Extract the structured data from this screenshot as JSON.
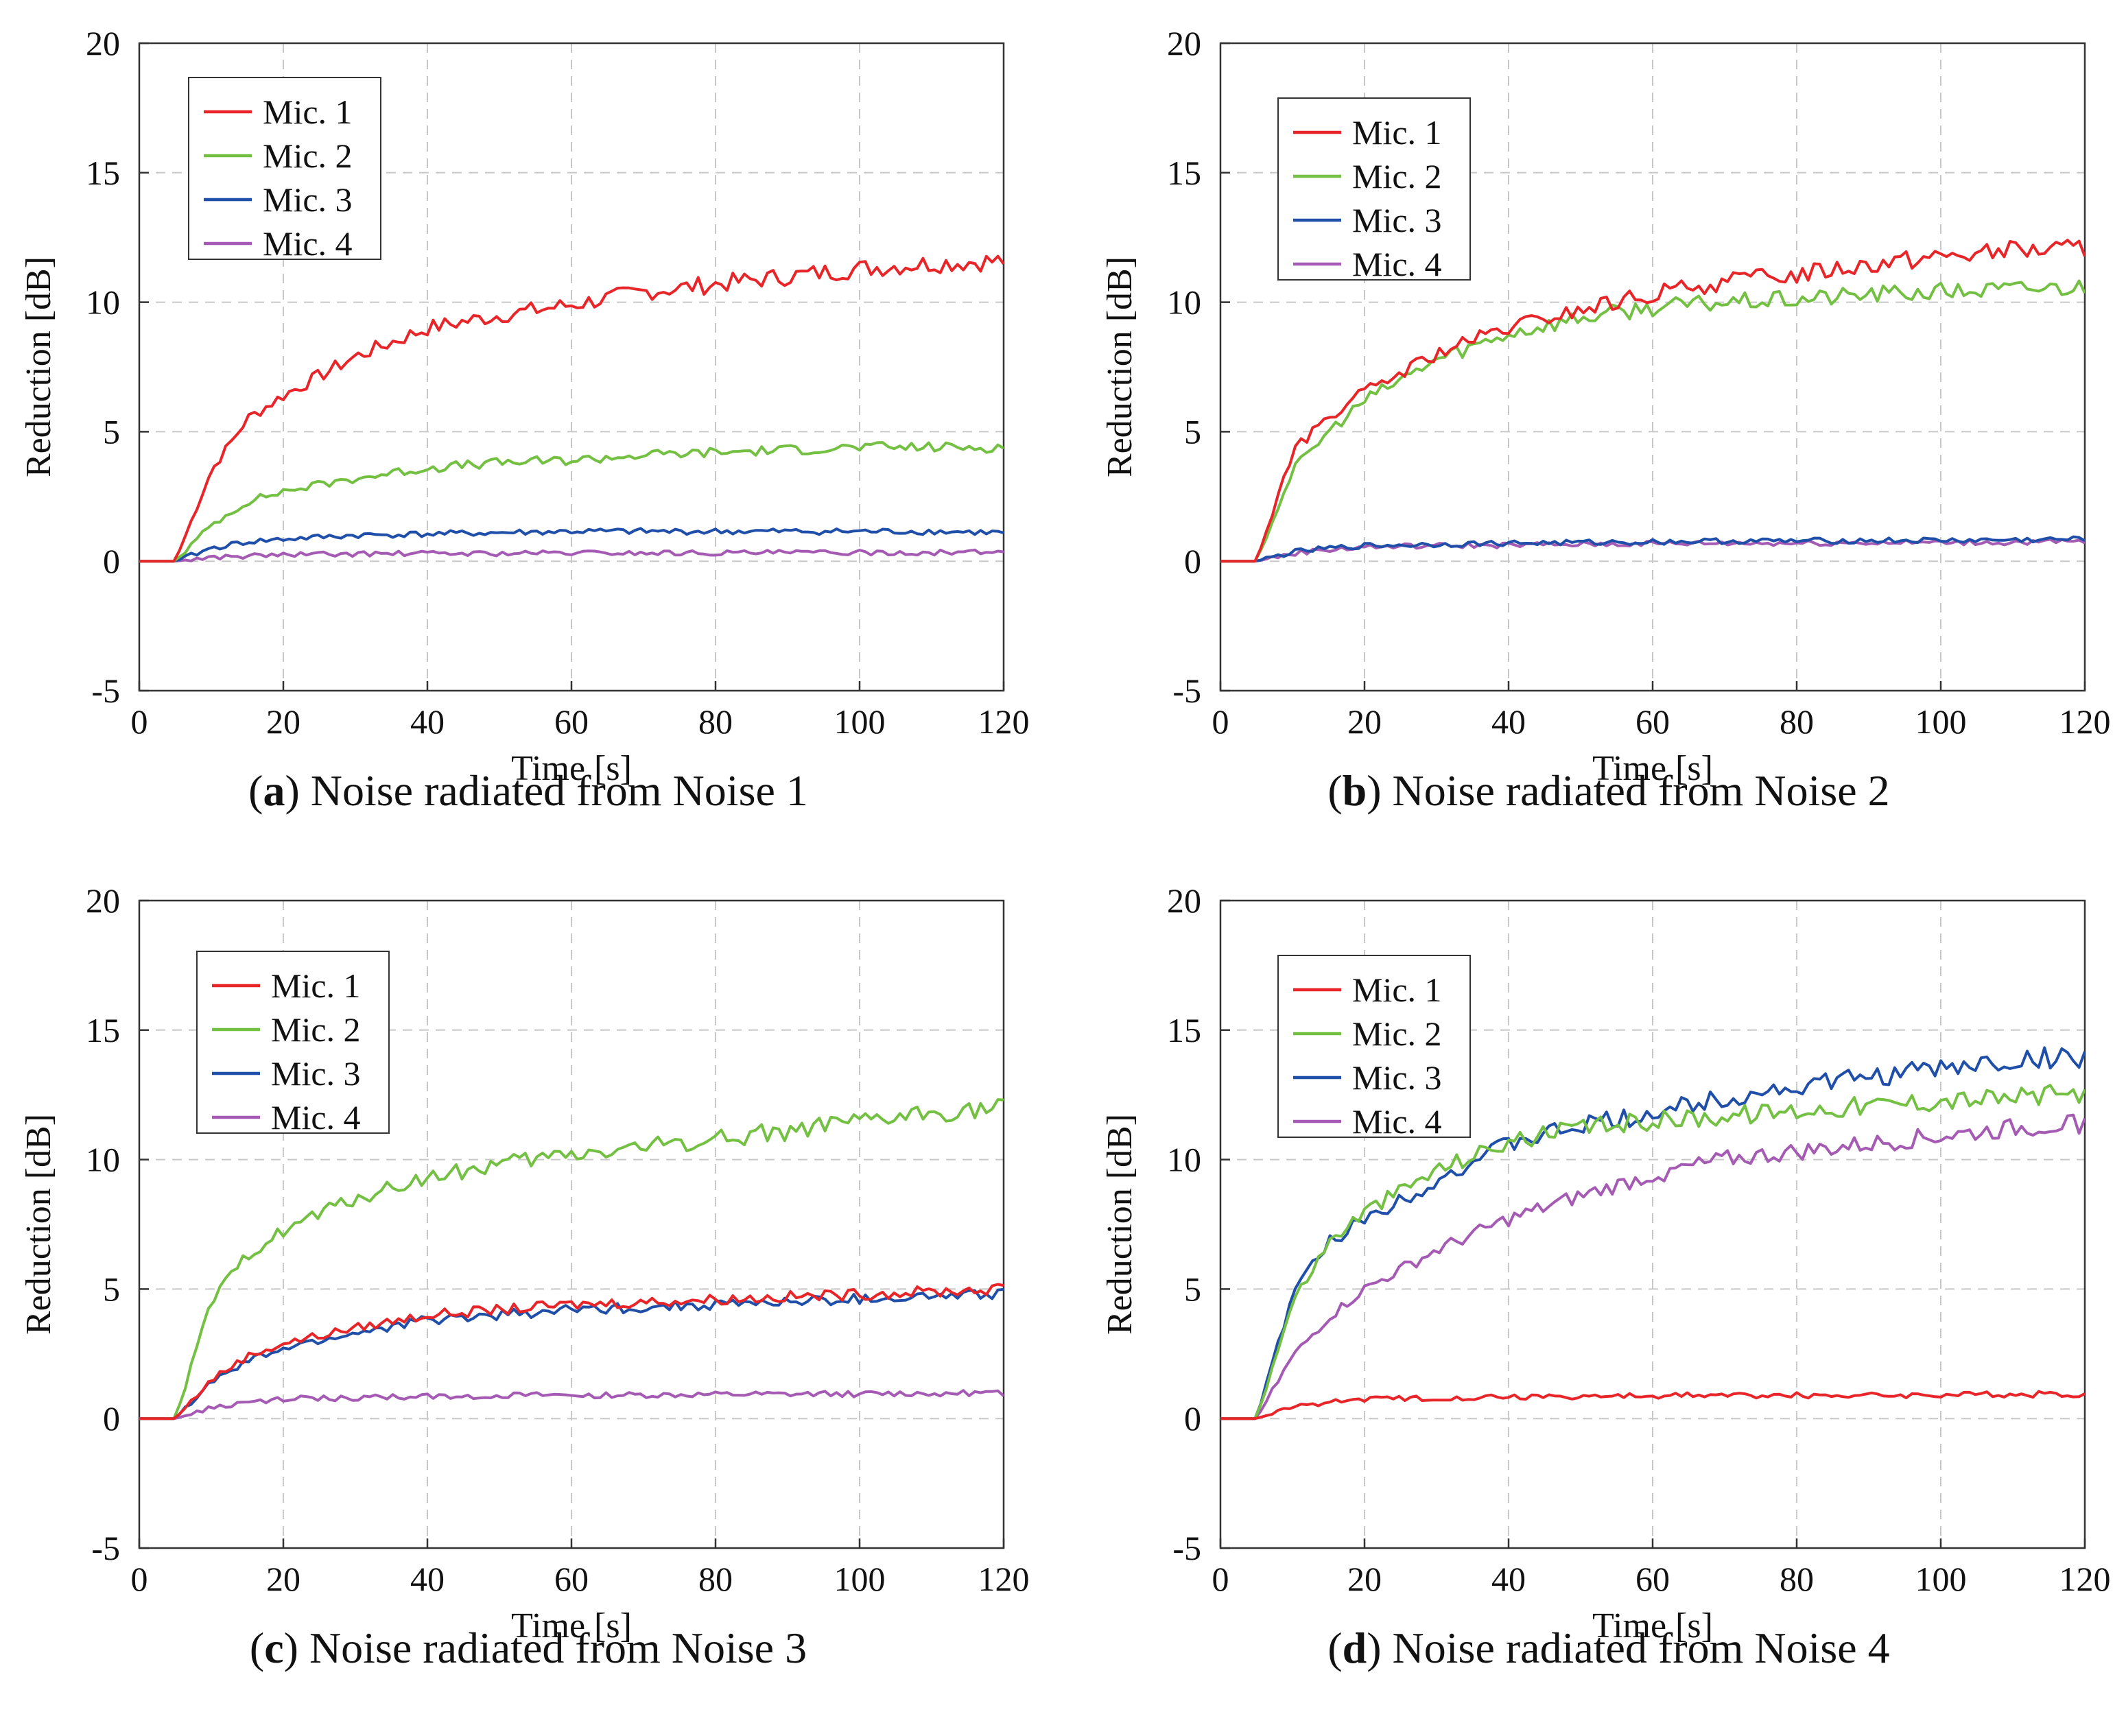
{
  "colors": {
    "mic1": "#e8262a",
    "mic2": "#73c043",
    "mic3": "#1f4fa8",
    "mic4": "#a55bb4",
    "grid": "#c8c8c8",
    "axis": "#333333"
  },
  "chart_data": [
    {
      "id": "a",
      "type": "line",
      "caption_letter": "a",
      "caption_text": "Noise radiated from Noise 1",
      "xlabel": "Time [s]",
      "ylabel": "Reduction [dB]",
      "xlim": [
        0,
        120
      ],
      "ylim": [
        -5,
        20
      ],
      "xticks": [
        0,
        20,
        40,
        60,
        80,
        100,
        120
      ],
      "yticks": [
        -5,
        0,
        5,
        10,
        15,
        20
      ],
      "grid": true,
      "legend_position": "top-left",
      "x": [
        0,
        5,
        10,
        15,
        20,
        30,
        40,
        50,
        60,
        70,
        80,
        90,
        100,
        110,
        120
      ],
      "series": [
        {
          "name": "Mic. 1",
          "color_key": "mic1",
          "values": [
            0,
            0,
            3.5,
            5.5,
            6.4,
            7.9,
            9.0,
            9.5,
            9.9,
            10.4,
            10.7,
            11.0,
            11.3,
            11.5,
            11.6
          ]
        },
        {
          "name": "Mic. 2",
          "color_key": "mic2",
          "values": [
            0,
            0,
            1.4,
            2.3,
            2.7,
            3.2,
            3.6,
            3.8,
            3.9,
            4.1,
            4.2,
            4.3,
            4.4,
            4.4,
            4.4
          ]
        },
        {
          "name": "Mic. 3",
          "color_key": "mic3",
          "values": [
            0,
            0,
            0.5,
            0.75,
            0.85,
            1.0,
            1.05,
            1.1,
            1.15,
            1.15,
            1.15,
            1.15,
            1.15,
            1.15,
            1.1
          ]
        },
        {
          "name": "Mic. 4",
          "color_key": "mic4",
          "values": [
            0,
            0,
            0.15,
            0.2,
            0.25,
            0.28,
            0.3,
            0.3,
            0.32,
            0.32,
            0.32,
            0.33,
            0.33,
            0.33,
            0.35
          ]
        }
      ]
    },
    {
      "id": "b",
      "type": "line",
      "caption_letter": "b",
      "caption_text": "Noise radiated from Noise 2",
      "xlabel": "Time [s]",
      "ylabel": "Reduction [dB]",
      "xlim": [
        0,
        120
      ],
      "ylim": [
        -5,
        20
      ],
      "xticks": [
        0,
        20,
        40,
        60,
        80,
        100,
        120
      ],
      "yticks": [
        -5,
        0,
        5,
        10,
        15,
        20
      ],
      "grid": true,
      "legend_position": "top-left",
      "x": [
        0,
        5,
        10,
        15,
        20,
        30,
        40,
        50,
        60,
        70,
        80,
        90,
        100,
        110,
        120
      ],
      "series": [
        {
          "name": "Mic. 1",
          "color_key": "mic1",
          "values": [
            0,
            0,
            4.2,
            5.6,
            6.5,
            8.0,
            9.0,
            9.7,
            10.3,
            10.8,
            11.1,
            11.5,
            11.8,
            12.0,
            12.1
          ]
        },
        {
          "name": "Mic. 2",
          "color_key": "mic2",
          "values": [
            0,
            0,
            3.5,
            5.0,
            6.2,
            7.8,
            8.8,
            9.4,
            9.8,
            10.0,
            10.1,
            10.3,
            10.4,
            10.5,
            10.6
          ]
        },
        {
          "name": "Mic. 3",
          "color_key": "mic3",
          "values": [
            0,
            0,
            0.35,
            0.5,
            0.6,
            0.65,
            0.7,
            0.72,
            0.75,
            0.78,
            0.78,
            0.8,
            0.8,
            0.82,
            0.85
          ]
        },
        {
          "name": "Mic. 4",
          "color_key": "mic4",
          "values": [
            0,
            0,
            0.3,
            0.45,
            0.55,
            0.6,
            0.62,
            0.65,
            0.68,
            0.7,
            0.7,
            0.72,
            0.72,
            0.73,
            0.75
          ]
        }
      ]
    },
    {
      "id": "c",
      "type": "line",
      "caption_letter": "c",
      "caption_text": "Noise radiated from Noise 3",
      "xlabel": "Time [s]",
      "ylabel": "Reduction [dB]",
      "xlim": [
        0,
        120
      ],
      "ylim": [
        -5,
        20
      ],
      "xticks": [
        0,
        20,
        40,
        60,
        80,
        100,
        120
      ],
      "yticks": [
        -5,
        0,
        5,
        10,
        15,
        20
      ],
      "grid": true,
      "legend_position": "top-left",
      "x": [
        0,
        5,
        10,
        15,
        20,
        30,
        40,
        50,
        60,
        70,
        80,
        90,
        100,
        110,
        120
      ],
      "series": [
        {
          "name": "Mic. 1",
          "color_key": "mic1",
          "values": [
            0,
            0,
            1.5,
            2.4,
            2.9,
            3.5,
            4.0,
            4.2,
            4.4,
            4.5,
            4.6,
            4.7,
            4.8,
            4.9,
            5.0
          ]
        },
        {
          "name": "Mic. 2",
          "color_key": "mic2",
          "values": [
            0,
            0,
            4.5,
            6.3,
            7.3,
            8.5,
            9.3,
            9.8,
            10.2,
            10.5,
            10.8,
            11.1,
            11.4,
            11.8,
            12.0
          ]
        },
        {
          "name": "Mic. 3",
          "color_key": "mic3",
          "values": [
            0,
            0,
            1.4,
            2.2,
            2.7,
            3.3,
            3.8,
            4.0,
            4.2,
            4.3,
            4.4,
            4.5,
            4.6,
            4.7,
            4.8
          ]
        },
        {
          "name": "Mic. 4",
          "color_key": "mic4",
          "values": [
            0,
            0,
            0.4,
            0.6,
            0.75,
            0.8,
            0.85,
            0.88,
            0.9,
            0.9,
            0.92,
            0.93,
            0.95,
            0.97,
            0.98
          ]
        }
      ]
    },
    {
      "id": "d",
      "type": "line",
      "caption_letter": "d",
      "caption_text": "Noise radiated from Noise 4",
      "xlabel": "Time [s]",
      "ylabel": "Reduction [dB]",
      "xlim": [
        0,
        120
      ],
      "ylim": [
        -5,
        20
      ],
      "xticks": [
        0,
        20,
        40,
        60,
        80,
        100,
        120
      ],
      "yticks": [
        -5,
        0,
        5,
        10,
        15,
        20
      ],
      "grid": true,
      "legend_position": "top-left",
      "x": [
        0,
        5,
        10,
        15,
        20,
        30,
        40,
        50,
        60,
        70,
        80,
        90,
        100,
        110,
        120
      ],
      "series": [
        {
          "name": "Mic. 1",
          "color_key": "mic1",
          "values": [
            0,
            0,
            0.45,
            0.65,
            0.75,
            0.8,
            0.85,
            0.85,
            0.88,
            0.9,
            0.9,
            0.9,
            0.92,
            0.93,
            0.95
          ]
        },
        {
          "name": "Mic. 2",
          "color_key": "mic2",
          "values": [
            0,
            0,
            4.5,
            6.8,
            8.0,
            9.6,
            10.7,
            11.2,
            11.5,
            11.7,
            11.9,
            12.1,
            12.3,
            12.4,
            12.6
          ]
        },
        {
          "name": "Mic. 3",
          "color_key": "mic3",
          "values": [
            0,
            0,
            4.8,
            6.8,
            7.7,
            9.2,
            10.6,
            11.3,
            11.8,
            12.4,
            12.8,
            13.2,
            13.5,
            13.8,
            14.0
          ]
        },
        {
          "name": "Mic. 4",
          "color_key": "mic4",
          "values": [
            0,
            0,
            2.4,
            3.9,
            5.0,
            6.5,
            7.7,
            8.6,
            9.4,
            10.0,
            10.3,
            10.6,
            10.9,
            11.2,
            11.4
          ]
        }
      ]
    }
  ]
}
